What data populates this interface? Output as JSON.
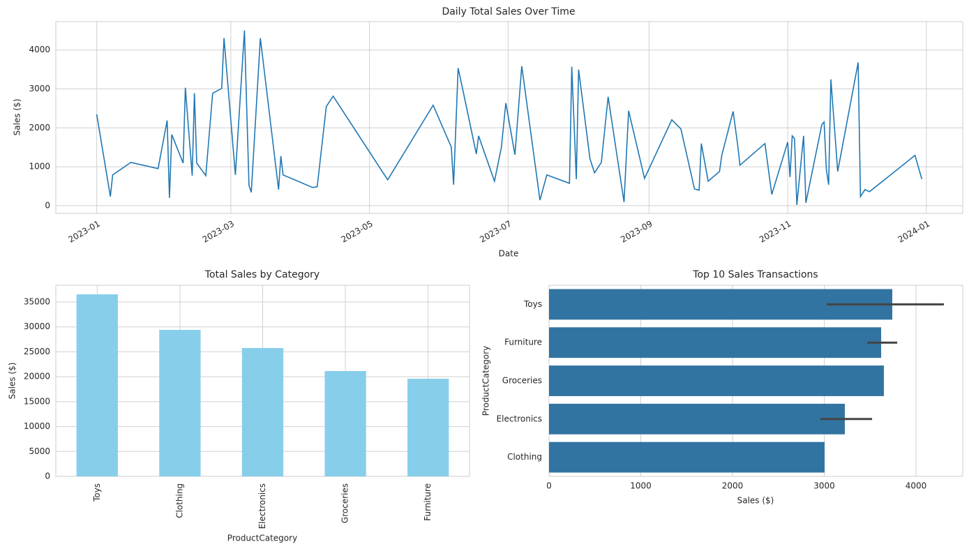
{
  "chart_data": [
    {
      "type": "line",
      "title": "Daily Total Sales Over Time",
      "x_label": "Date",
      "y_label": "Sales ($)",
      "color": "#1f77b4",
      "grid": true,
      "x": [
        "2023-01-01",
        "2023-01-07",
        "2023-01-08",
        "2023-01-16",
        "2023-01-28",
        "2023-02-01",
        "2023-02-02",
        "2023-02-03",
        "2023-02-08",
        "2023-02-09",
        "2023-02-12",
        "2023-02-13",
        "2023-02-14",
        "2023-02-18",
        "2023-02-21",
        "2023-02-25",
        "2023-02-26",
        "2023-03-03",
        "2023-03-07",
        "2023-03-09",
        "2023-03-10",
        "2023-03-14",
        "2023-03-22",
        "2023-03-23",
        "2023-03-24",
        "2023-04-06",
        "2023-04-08",
        "2023-04-12",
        "2023-04-15",
        "2023-05-09",
        "2023-05-29",
        "2023-06-06",
        "2023-06-07",
        "2023-06-09",
        "2023-06-11",
        "2023-06-17",
        "2023-06-18",
        "2023-06-25",
        "2023-06-28",
        "2023-06-30",
        "2023-07-04",
        "2023-07-07",
        "2023-07-15",
        "2023-07-18",
        "2023-07-28",
        "2023-07-29",
        "2023-07-31",
        "2023-08-01",
        "2023-08-06",
        "2023-08-08",
        "2023-08-11",
        "2023-08-14",
        "2023-08-21",
        "2023-08-23",
        "2023-08-30",
        "2023-09-11",
        "2023-09-15",
        "2023-09-21",
        "2023-09-23",
        "2023-09-24",
        "2023-09-27",
        "2023-10-02",
        "2023-10-03",
        "2023-10-08",
        "2023-10-10",
        "2023-10-11",
        "2023-10-22",
        "2023-10-25",
        "2023-11-01",
        "2023-11-02",
        "2023-11-03",
        "2023-11-04",
        "2023-11-05",
        "2023-11-08",
        "2023-11-09",
        "2023-11-16",
        "2023-11-17",
        "2023-11-18",
        "2023-11-19",
        "2023-11-20",
        "2023-11-23",
        "2023-12-02",
        "2023-12-03",
        "2023-12-05",
        "2023-12-07",
        "2023-12-27",
        "2023-12-30"
      ],
      "values": [
        2350,
        233,
        789,
        1112,
        951,
        2188,
        197,
        1830,
        1094,
        3031,
        771,
        2888,
        1094,
        771,
        2888,
        3013,
        4305,
        789,
        4502,
        520,
        341,
        4305,
        413,
        1274,
        789,
        466,
        484,
        2547,
        2816,
        664,
        2583,
        1507,
        538,
        3534,
        2996,
        1327,
        1794,
        628,
        1489,
        2637,
        1309,
        3587,
        143,
        789,
        574,
        3570,
        682,
        3498,
        1202,
        843,
        1112,
        2798,
        90,
        2439,
        700,
        2206,
        1973,
        430,
        395,
        1596,
        628,
        879,
        1291,
        2422,
        1561,
        1040,
        1596,
        287,
        1632,
        735,
        1794,
        1722,
        18,
        1794,
        72,
        2081,
        2152,
        933,
        538,
        3247,
        879,
        3677,
        233,
        413,
        359,
        1291,
        682
      ],
      "xlim": [
        "2022-12-14",
        "2024-01-17"
      ],
      "xticks": [
        "2023-01",
        "2023-03",
        "2023-05",
        "2023-07",
        "2023-09",
        "2023-11",
        "2024-01"
      ],
      "ylim": [
        -200,
        4730
      ],
      "yticks": [
        0,
        1000,
        2000,
        3000,
        4000
      ]
    },
    {
      "type": "bar",
      "title": "Total Sales by Category",
      "x_label": "ProductCategory",
      "y_label": "Sales ($)",
      "color": "#87ceeb",
      "grid": true,
      "categories": [
        "Toys",
        "Clothing",
        "Electronics",
        "Groceries",
        "Furniture"
      ],
      "values": [
        36540,
        29400,
        25760,
        21140,
        19600
      ],
      "ylim": [
        0,
        38360
      ],
      "yticks": [
        0,
        5000,
        10000,
        15000,
        20000,
        25000,
        30000,
        35000
      ]
    },
    {
      "type": "barh",
      "title": "Top 10 Sales Transactions",
      "x_label": "Sales ($)",
      "y_label": "ProductCategory",
      "color": "#3274a1",
      "errorbar_color": "#444444",
      "grid": true,
      "categories": [
        "Toys",
        "Furniture",
        "Groceries",
        "Electronics",
        "Clothing"
      ],
      "values": [
        3741,
        3620,
        3650,
        3224,
        3004
      ],
      "ci_low": [
        3027,
        3468,
        null,
        2958,
        null
      ],
      "ci_high": [
        4304,
        3795,
        null,
        3521,
        null
      ],
      "xlim": [
        0,
        4509
      ],
      "xticks": [
        0,
        1000,
        2000,
        3000,
        4000
      ]
    }
  ]
}
